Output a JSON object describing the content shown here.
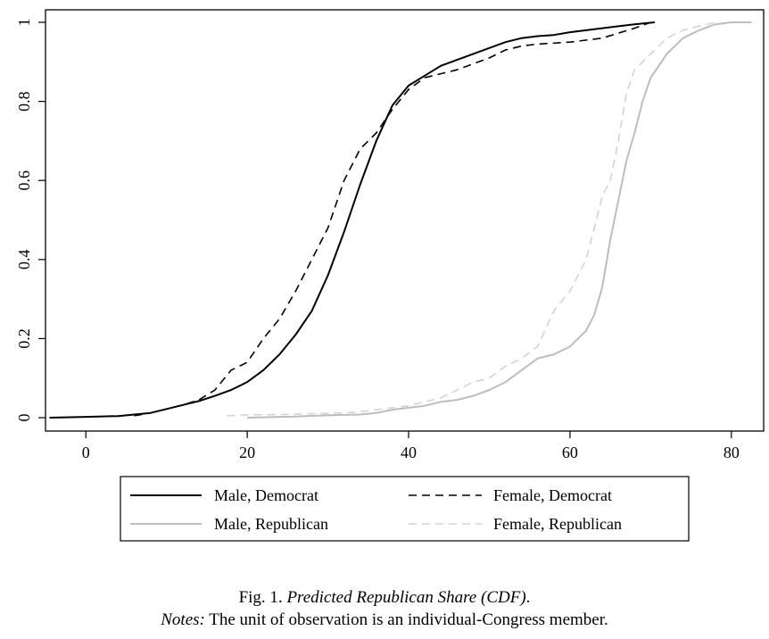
{
  "chart_data": {
    "type": "line",
    "title": "",
    "xlabel": "",
    "ylabel": "",
    "xlim": [
      -5,
      84
    ],
    "ylim": [
      0,
      1
    ],
    "x_ticks": [
      0,
      20,
      40,
      60,
      80
    ],
    "y_ticks": [
      0,
      0.2,
      0.4,
      0.6,
      0.8,
      1
    ],
    "x_tick_labels": [
      "0",
      "20",
      "40",
      "60",
      "80"
    ],
    "y_tick_labels": [
      "0",
      "0.2",
      "0.4",
      "0.6",
      "0.8",
      "1"
    ],
    "grid": false,
    "legend_position": "bottom",
    "series": [
      {
        "name": "Male, Democrat",
        "color": "#000000",
        "dash": "solid",
        "points": [
          [
            -4.5,
            0
          ],
          [
            0,
            0.002
          ],
          [
            4,
            0.004
          ],
          [
            8,
            0.012
          ],
          [
            10,
            0.022
          ],
          [
            12,
            0.032
          ],
          [
            14,
            0.042
          ],
          [
            16,
            0.055
          ],
          [
            18,
            0.07
          ],
          [
            20,
            0.09
          ],
          [
            22,
            0.12
          ],
          [
            24,
            0.16
          ],
          [
            26,
            0.21
          ],
          [
            28,
            0.27
          ],
          [
            30,
            0.36
          ],
          [
            32,
            0.47
          ],
          [
            34,
            0.59
          ],
          [
            36,
            0.7
          ],
          [
            38,
            0.79
          ],
          [
            40,
            0.84
          ],
          [
            42,
            0.865
          ],
          [
            44,
            0.89
          ],
          [
            46,
            0.905
          ],
          [
            48,
            0.92
          ],
          [
            50,
            0.935
          ],
          [
            52,
            0.95
          ],
          [
            54,
            0.96
          ],
          [
            56,
            0.965
          ],
          [
            58,
            0.968
          ],
          [
            60,
            0.975
          ],
          [
            64,
            0.985
          ],
          [
            66,
            0.99
          ],
          [
            68,
            0.995
          ],
          [
            70.5,
            1
          ]
        ]
      },
      {
        "name": "Female, Democrat",
        "color": "#000000",
        "dash": "dashed",
        "points": [
          [
            6,
            0.005
          ],
          [
            8,
            0.012
          ],
          [
            10,
            0.022
          ],
          [
            12,
            0.032
          ],
          [
            14,
            0.045
          ],
          [
            16,
            0.07
          ],
          [
            18,
            0.12
          ],
          [
            20,
            0.14
          ],
          [
            22,
            0.2
          ],
          [
            24,
            0.25
          ],
          [
            26,
            0.32
          ],
          [
            28,
            0.4
          ],
          [
            30,
            0.48
          ],
          [
            32,
            0.6
          ],
          [
            34,
            0.68
          ],
          [
            36,
            0.72
          ],
          [
            38,
            0.78
          ],
          [
            40,
            0.83
          ],
          [
            42,
            0.86
          ],
          [
            44,
            0.87
          ],
          [
            46,
            0.88
          ],
          [
            48,
            0.895
          ],
          [
            50,
            0.91
          ],
          [
            52,
            0.93
          ],
          [
            54,
            0.94
          ],
          [
            56,
            0.945
          ],
          [
            60,
            0.95
          ],
          [
            64,
            0.96
          ],
          [
            68,
            0.985
          ],
          [
            70,
            1
          ]
        ]
      },
      {
        "name": "Male, Republican",
        "color": "#bdbdbd",
        "dash": "solid",
        "points": [
          [
            20,
            0
          ],
          [
            26,
            0.003
          ],
          [
            30,
            0.006
          ],
          [
            34,
            0.008
          ],
          [
            36,
            0.012
          ],
          [
            38,
            0.02
          ],
          [
            40,
            0.025
          ],
          [
            42,
            0.03
          ],
          [
            44,
            0.04
          ],
          [
            46,
            0.045
          ],
          [
            48,
            0.055
          ],
          [
            50,
            0.07
          ],
          [
            52,
            0.09
          ],
          [
            54,
            0.12
          ],
          [
            56,
            0.15
          ],
          [
            58,
            0.16
          ],
          [
            60,
            0.18
          ],
          [
            62,
            0.22
          ],
          [
            63,
            0.26
          ],
          [
            64,
            0.33
          ],
          [
            65,
            0.45
          ],
          [
            66,
            0.55
          ],
          [
            67,
            0.65
          ],
          [
            68,
            0.72
          ],
          [
            69,
            0.8
          ],
          [
            70,
            0.86
          ],
          [
            72,
            0.92
          ],
          [
            74,
            0.96
          ],
          [
            76,
            0.98
          ],
          [
            78,
            0.995
          ],
          [
            80,
            1
          ],
          [
            82.5,
            1
          ]
        ]
      },
      {
        "name": "Female, Republican",
        "color": "#d3d3d3",
        "dash": "dashed",
        "points": [
          [
            17.5,
            0.005
          ],
          [
            20,
            0.007
          ],
          [
            24,
            0.008
          ],
          [
            28,
            0.01
          ],
          [
            32,
            0.012
          ],
          [
            34,
            0.015
          ],
          [
            36,
            0.02
          ],
          [
            38,
            0.025
          ],
          [
            40,
            0.03
          ],
          [
            42,
            0.04
          ],
          [
            44,
            0.05
          ],
          [
            46,
            0.07
          ],
          [
            48,
            0.09
          ],
          [
            50,
            0.1
          ],
          [
            52,
            0.13
          ],
          [
            54,
            0.15
          ],
          [
            56,
            0.18
          ],
          [
            58,
            0.27
          ],
          [
            60,
            0.32
          ],
          [
            62,
            0.4
          ],
          [
            63,
            0.48
          ],
          [
            64,
            0.56
          ],
          [
            65,
            0.6
          ],
          [
            66,
            0.7
          ],
          [
            67,
            0.82
          ],
          [
            68,
            0.88
          ],
          [
            70,
            0.92
          ],
          [
            72,
            0.96
          ],
          [
            74,
            0.98
          ],
          [
            76,
            0.99
          ],
          [
            78,
            1
          ]
        ]
      }
    ]
  },
  "legend": {
    "male_democrat": "Male, Democrat",
    "female_democrat": "Female, Democrat",
    "male_republican": "Male, Republican",
    "female_republican": "Female, Republican"
  },
  "caption": {
    "fig_label": "Fig. 1. ",
    "fig_title": "Predicted Republican Share (CDF)",
    "fig_end": ".",
    "notes_label": "Notes:",
    "notes_text": " The unit of observation is an individual-Congress member."
  }
}
